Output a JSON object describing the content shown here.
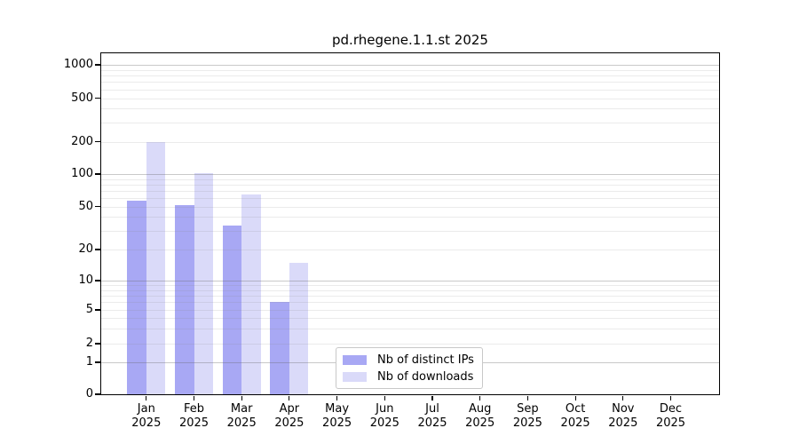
{
  "window": {
    "background": "#ffffff"
  },
  "chart_data": {
    "type": "bar",
    "title": "pd.rhegene.1.1.st 2025",
    "scale": "symlog",
    "categories": [
      "Jan",
      "Feb",
      "Mar",
      "Apr",
      "May",
      "Jun",
      "Jul",
      "Aug",
      "Sep",
      "Oct",
      "Nov",
      "Dec"
    ],
    "year_label": "2025",
    "series": [
      {
        "name": "Nb of distinct IPs",
        "color": "#a8a8f4",
        "values": [
          57,
          51,
          33,
          6,
          0,
          0,
          0,
          0,
          0,
          0,
          0,
          0
        ]
      },
      {
        "name": "Nb of downloads",
        "color": "#dadaf9",
        "values": [
          197,
          102,
          65,
          15,
          0,
          0,
          0,
          0,
          0,
          0,
          0,
          0
        ]
      }
    ],
    "yticks": [
      0,
      1,
      2,
      5,
      10,
      20,
      50,
      100,
      200,
      500,
      1000
    ],
    "ylim": [
      0,
      1280
    ],
    "grid": "on",
    "legend_position": "inside-bottom-center",
    "xlabel": "",
    "ylabel": ""
  },
  "colors": {
    "grid_major": "rgba(100,100,100,0.35)",
    "grid_minor": "rgba(130,130,130,0.16)",
    "axis": "#000000",
    "text": "#000000",
    "legend_border": "#c8c8c8"
  }
}
